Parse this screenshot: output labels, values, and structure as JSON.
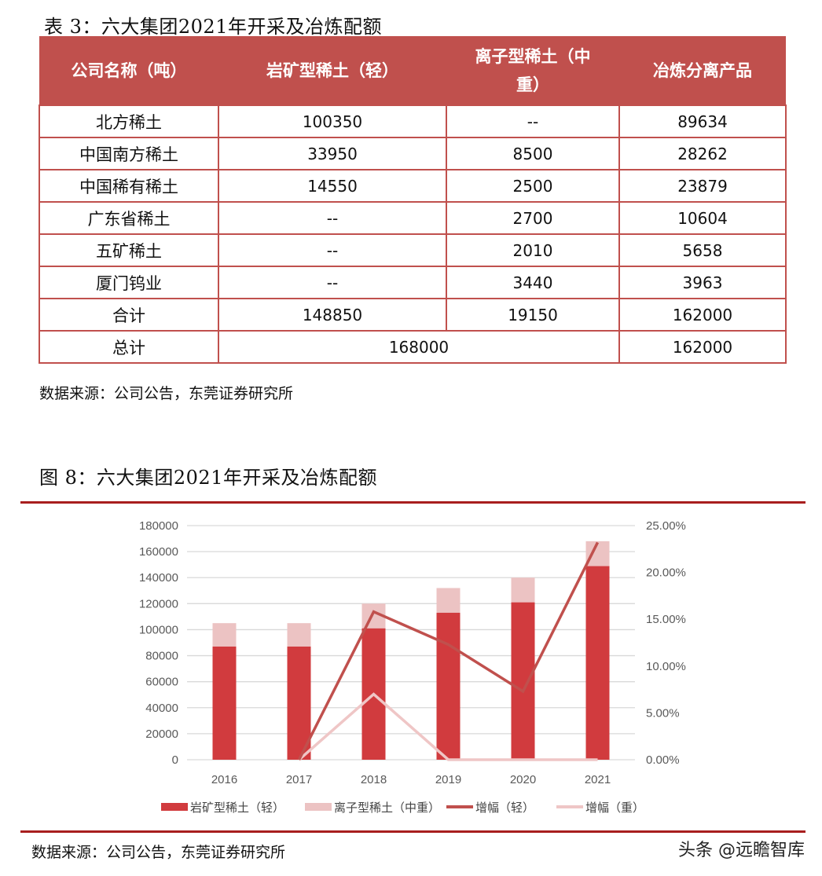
{
  "table": {
    "caption": "表 3：六大集团2021年开采及冶炼配额",
    "headers": [
      "公司名称（吨）",
      "岩矿型稀土（轻）",
      "离子型稀土（中重）",
      "冶炼分离产品"
    ],
    "header_lines": {
      "col2_line1": "离子型稀土（中",
      "col2_line2": "重）"
    },
    "rows": [
      {
        "name": "北方稀土",
        "light": "100350",
        "medium_heavy": "--",
        "smelting": "89634"
      },
      {
        "name": "中国南方稀土",
        "light": "33950",
        "medium_heavy": "8500",
        "smelting": "28262"
      },
      {
        "name": "中国稀有稀土",
        "light": "14550",
        "medium_heavy": "2500",
        "smelting": "23879"
      },
      {
        "name": "广东省稀土",
        "light": "--",
        "medium_heavy": "2700",
        "smelting": "10604"
      },
      {
        "name": "五矿稀土",
        "light": "--",
        "medium_heavy": "2010",
        "smelting": "5658"
      },
      {
        "name": "厦门钨业",
        "light": "--",
        "medium_heavy": "3440",
        "smelting": "3963"
      },
      {
        "name": "合计",
        "light": "148850",
        "medium_heavy": "19150",
        "smelting": "162000"
      }
    ],
    "total_row": {
      "name": "总计",
      "mining_total": "168000",
      "smelting": "162000"
    },
    "source": "数据来源：公司公告，东莞证券研究所"
  },
  "figure": {
    "caption": "图 8：六大集团2021年开采及冶炼配额",
    "source": "数据来源：公司公告，东莞证券研究所",
    "watermark": "头条 @远瞻智库"
  },
  "colors": {
    "header_bg": "#c0504d",
    "bar_light": "#d13b3e",
    "bar_medium_heavy": "#ecc3c3",
    "line_light": "#c0504d",
    "line_heavy": "#efc6c6",
    "rule": "#a81e1e",
    "grid": "#d9d9d9",
    "axis_text": "#595959"
  },
  "chart_data": {
    "type": "bar",
    "stacked": true,
    "title": "图 8：六大集团2021年开采及冶炼配额",
    "categories": [
      "2016",
      "2017",
      "2018",
      "2019",
      "2020",
      "2021"
    ],
    "series": [
      {
        "name": "岩矿型稀土（轻）",
        "type": "bar",
        "axis": "left",
        "values": [
          87000,
          87000,
          101000,
          113000,
          121000,
          148850
        ]
      },
      {
        "name": "离子型稀土（中重）",
        "type": "bar",
        "axis": "left",
        "values": [
          18000,
          18000,
          19000,
          19000,
          19000,
          19150
        ]
      },
      {
        "name": "增幅（轻）",
        "type": "line",
        "axis": "right",
        "values": [
          null,
          0.0,
          0.158,
          0.123,
          0.073,
          0.232
        ]
      },
      {
        "name": "增幅（重）",
        "type": "line",
        "axis": "right",
        "values": [
          null,
          0.0,
          0.07,
          0.0,
          0.0,
          0.0
        ]
      }
    ],
    "left_axis": {
      "ylim": [
        0,
        180000
      ],
      "ticks": [
        "0",
        "20000",
        "40000",
        "60000",
        "80000",
        "100000",
        "120000",
        "140000",
        "160000",
        "180000"
      ]
    },
    "right_axis": {
      "ylim": [
        0,
        0.25
      ],
      "ticks": [
        "0.00%",
        "5.00%",
        "10.00%",
        "15.00%",
        "20.00%",
        "25.00%"
      ]
    },
    "xlabel": "",
    "ylabel": "",
    "grid": true,
    "legend_position": "bottom"
  }
}
